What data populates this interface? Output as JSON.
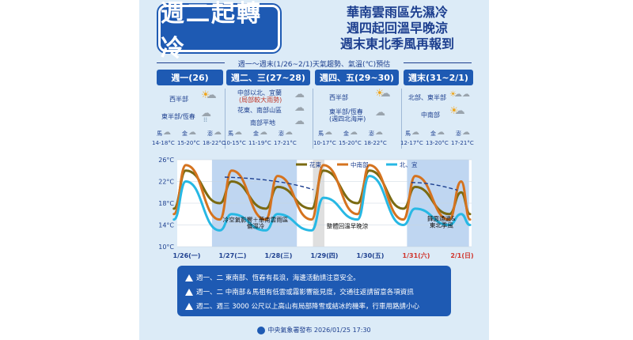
{
  "title": "週二起轉冷",
  "headlines": [
    "華南雲雨區先濕冷",
    "週四起回溫早晚涼",
    "週末東北季風再報到"
  ],
  "subtitle": "週一～週末(1/26~2/1)天氣趨勢、氣溫(℃)預估",
  "columns": [
    {
      "label": "週一(26)"
    },
    {
      "label": "週二、三(27~28)"
    },
    {
      "label": "週四、五(29~30)"
    },
    {
      "label": "週末(31~2/1)"
    }
  ],
  "regions": {
    "mon_west": "西半部",
    "mon_east": "東半部/恆春",
    "tuewed_north": "中部以北、宜蘭",
    "tuewed_north_note": "(局部較大雨勢)",
    "tuewed_hualien": "花東、南部山區",
    "tuewed_south": "南部平地",
    "thufri_west": "西半部",
    "thufri_east": "東半部/恆春",
    "thufri_east_note": "(週四北海岸)",
    "weekend_northeast": "北部、東半部",
    "weekend_central": "中南部"
  },
  "islands": {
    "mon": [
      {
        "name": "馬",
        "temp": "14-18°C"
      },
      {
        "name": "金",
        "temp": "15-20°C"
      },
      {
        "name": "澎",
        "temp": "18-22°C"
      }
    ],
    "tuewed": [
      {
        "name": "馬",
        "temp": "10-15°C"
      },
      {
        "name": "金",
        "temp": "11-19°C"
      },
      {
        "name": "澎",
        "temp": "17-21°C"
      }
    ],
    "thufri": [
      {
        "name": "馬",
        "temp": "10-17°C"
      },
      {
        "name": "金",
        "temp": "15-20°C"
      },
      {
        "name": "澎",
        "temp": "18-22°C"
      }
    ],
    "weekend": [
      {
        "name": "馬",
        "temp": "12-17°C"
      },
      {
        "name": "金",
        "temp": "13-20°C"
      },
      {
        "name": "澎",
        "temp": "17-21°C"
      }
    ]
  },
  "chart_data": {
    "type": "line",
    "x": [
      "1/26(一)",
      "1/27(二)",
      "1/28(三)",
      "1/29(四)",
      "1/30(五)",
      "1/31(六)",
      "2/1(日)"
    ],
    "yticks": [
      "26°C",
      "22°C",
      "18°C",
      "14°C",
      "10°C"
    ],
    "ylim": [
      10,
      26
    ],
    "legend": [
      "花東",
      "中南部",
      "北、宜"
    ],
    "series": [
      {
        "name": "花東",
        "color": "#7a6a12",
        "values_min_max": [
          [
            17,
            24
          ],
          [
            18,
            22
          ],
          [
            17,
            21
          ],
          [
            17,
            24
          ],
          [
            18,
            24
          ],
          [
            17,
            21
          ],
          [
            16,
            20
          ]
        ]
      },
      {
        "name": "中南部",
        "color": "#d5731f",
        "values_min_max": [
          [
            16,
            25
          ],
          [
            15,
            24
          ],
          [
            15,
            23
          ],
          [
            15,
            25
          ],
          [
            16,
            25
          ],
          [
            15,
            23
          ],
          [
            15,
            22
          ]
        ]
      },
      {
        "name": "北、宜",
        "color": "#27b8e4",
        "values_min_max": [
          [
            15,
            22
          ],
          [
            13,
            16
          ],
          [
            13,
            16
          ],
          [
            13,
            19
          ],
          [
            15,
            23
          ],
          [
            14,
            17
          ],
          [
            14,
            16
          ]
        ]
      }
    ],
    "annotations": [
      "冷空氣影響＋華南雲雨區",
      "偏濕冷",
      "整體回溫早晚涼",
      "鋒面通過&",
      "東北季風"
    ],
    "weekend_labels_color": "#d0342c"
  },
  "notes": [
    "週一、二 東南部、恆春有長浪，海邊活動請注意安全。",
    "週一、二 中南部＆馬祖有低雲或霧影響能見度，交通往返請留意各項資訊",
    "週二、週三 3000 公尺以上高山有局部降雪或結冰的機率，行車用路請小心"
  ],
  "footer": "中央氣象署發布 2026/01/25 17:30",
  "colors": {
    "primary": "#1e5ab3",
    "background": "#dcebf7",
    "shade": "#a9c8ec"
  }
}
